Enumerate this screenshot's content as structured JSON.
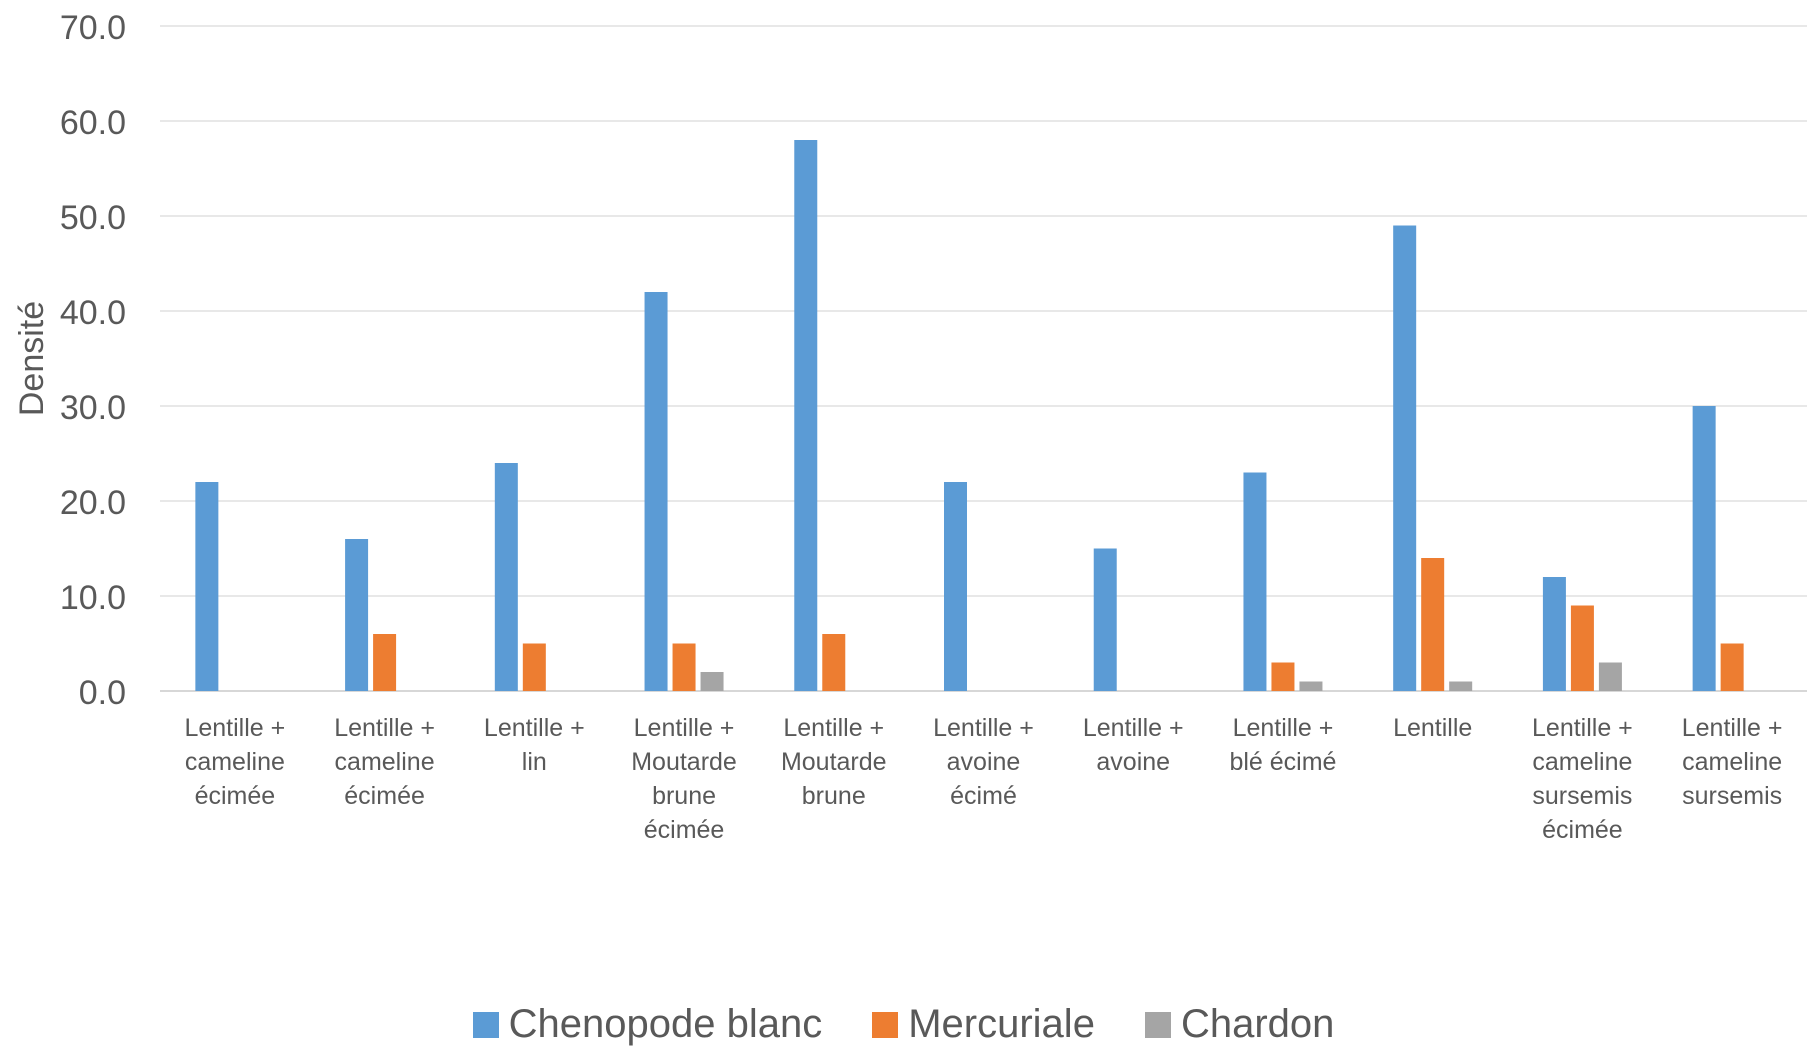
{
  "chart_data": {
    "type": "bar",
    "title": "",
    "xlabel": "",
    "ylabel": "Densité",
    "ylim": [
      0,
      70
    ],
    "yticks": [
      "0.0",
      "10.0",
      "20.0",
      "30.0",
      "40.0",
      "50.0",
      "60.0",
      "70.0"
    ],
    "grid": true,
    "legend_position": "bottom",
    "categories": [
      [
        "Lentille +",
        "cameline",
        "écimée"
      ],
      [
        "Lentille +",
        "cameline",
        "écimée"
      ],
      [
        "Lentille +",
        "lin"
      ],
      [
        "Lentille +",
        "Moutarde",
        "brune",
        "écimée"
      ],
      [
        "Lentille +",
        "Moutarde",
        "brune"
      ],
      [
        "Lentille +",
        "avoine",
        "écimé"
      ],
      [
        "Lentille +",
        "avoine"
      ],
      [
        "Lentille +",
        "blé écimé"
      ],
      [
        "Lentille"
      ],
      [
        "Lentille +",
        "cameline",
        "sursemis",
        "écimée"
      ],
      [
        "Lentille +",
        "cameline",
        "sursemis"
      ]
    ],
    "series": [
      {
        "name": "Chenopode blanc",
        "color": "#5B9BD5",
        "values": [
          22,
          16,
          24,
          42,
          58,
          22,
          15,
          23,
          49,
          12,
          30
        ]
      },
      {
        "name": "Mercuriale",
        "color": "#ED7D31",
        "values": [
          0,
          6,
          5,
          5,
          6,
          0,
          0,
          3,
          14,
          9,
          5
        ]
      },
      {
        "name": "Chardon",
        "color": "#A5A5A5",
        "values": [
          0,
          0,
          0,
          2,
          0,
          0,
          0,
          1,
          1,
          3,
          0
        ]
      }
    ]
  }
}
